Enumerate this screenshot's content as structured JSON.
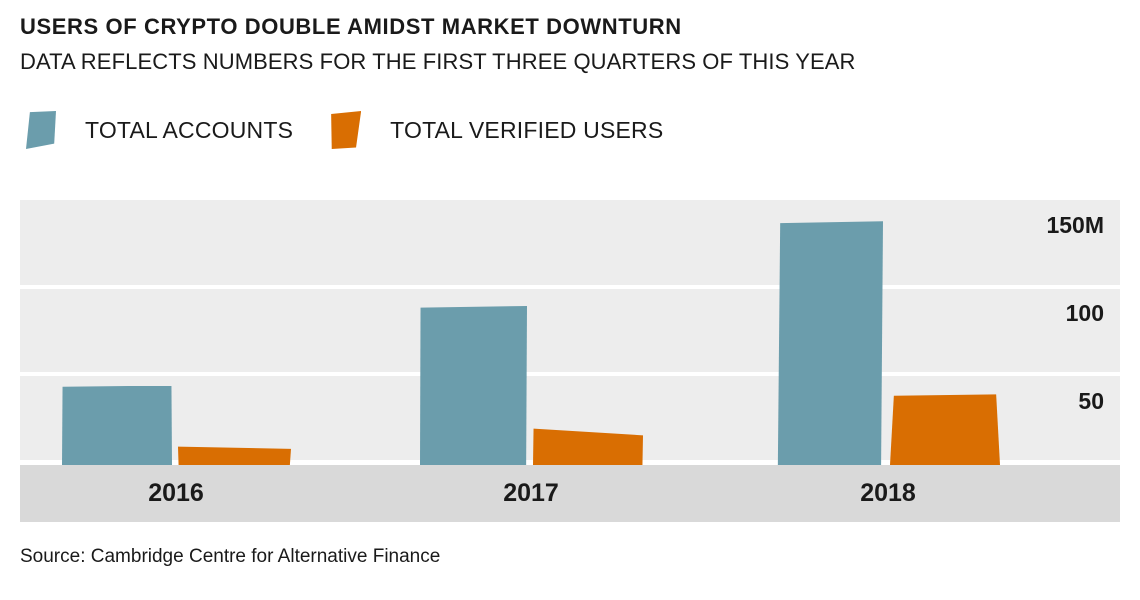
{
  "header": {
    "title": "USERS OF CRYPTO DOUBLE AMIDST MARKET DOWNTURN",
    "subtitle": "DATA REFLECTS NUMBERS FOR THE FIRST THREE QUARTERS OF THIS YEAR"
  },
  "chart_data": {
    "type": "bar",
    "title": "USERS OF CRYPTO DOUBLE AMIDST MARKET DOWNTURN",
    "subtitle": "DATA REFLECTS NUMBERS FOR THE FIRST THREE QUARTERS OF THIS YEAR",
    "categories": [
      "2016",
      "2017",
      "2018"
    ],
    "series": [
      {
        "name": "TOTAL ACCOUNTS",
        "color": "#6b9dac",
        "values": [
          45,
          90,
          138
        ]
      },
      {
        "name": "TOTAL VERIFIED USERS",
        "color": "#d96e02",
        "values": [
          11,
          21,
          40
        ]
      }
    ],
    "unit": "millions of users",
    "xlabel": "",
    "ylabel": "",
    "ylim": [
      0,
      150
    ],
    "yticks": [
      {
        "value": 150,
        "label": "150M"
      },
      {
        "value": 100,
        "label": "100"
      },
      {
        "value": 50,
        "label": "50"
      }
    ],
    "legend_position": "top-left",
    "grid": "horizontal-bands"
  },
  "source": {
    "text": "Source: Cambridge Centre for Alternative Finance"
  },
  "colors": {
    "accounts": "#6b9dac",
    "verified": "#d96e02",
    "grid_band": "#ededed",
    "axis_band": "#d9d9d9",
    "text": "#1a1a1a",
    "background": "#ffffff"
  }
}
